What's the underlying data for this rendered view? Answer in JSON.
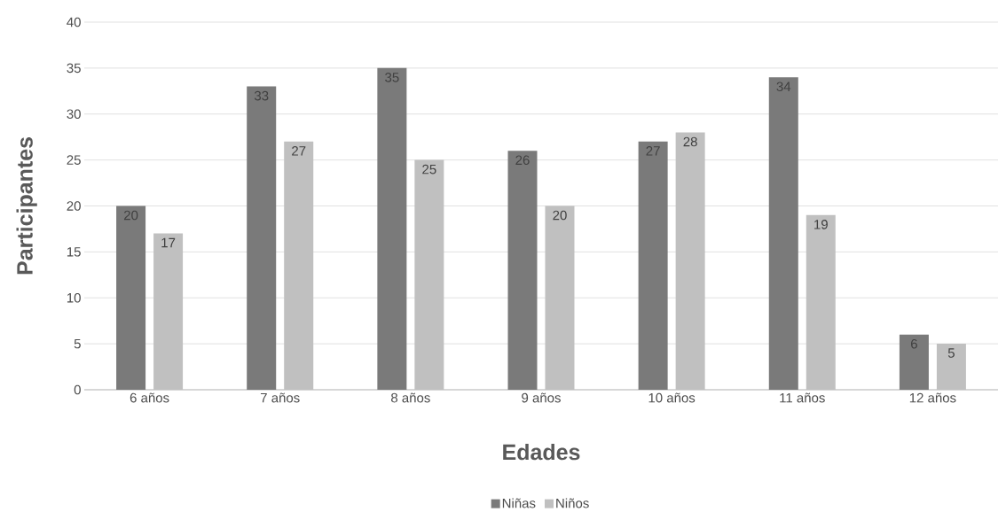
{
  "chart_data": {
    "type": "bar",
    "xlabel": "Edades",
    "ylabel": "Participantes",
    "categories": [
      "6 años",
      "7 años",
      "8 años",
      "9 años",
      "10 años",
      "11 años",
      "12 años"
    ],
    "series": [
      {
        "name": "Niñas",
        "color": "#7a7a7a",
        "values": [
          20,
          33,
          35,
          26,
          27,
          34,
          6
        ]
      },
      {
        "name": "Niños",
        "color": "#c0c0c0",
        "values": [
          17,
          27,
          25,
          20,
          28,
          19,
          5
        ]
      }
    ],
    "ylim": [
      0,
      40
    ],
    "yticks": [
      0,
      5,
      10,
      15,
      20,
      25,
      30,
      35,
      40
    ],
    "grid": "y",
    "legend": "bottom",
    "data_labels": true
  }
}
